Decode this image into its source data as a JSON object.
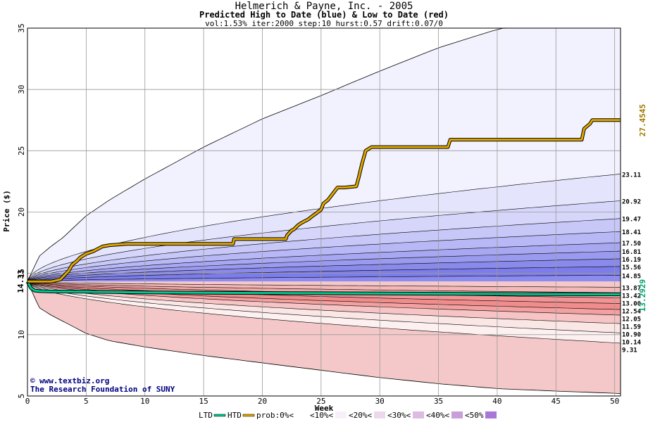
{
  "header": {
    "title": "Helmerich & Payne, Inc. - 2005",
    "subtitle": "Predicted High to Date (blue) &  Low to Date (red)",
    "params": "vol:1.53% iter:2000 step:10 hurst:0.57 drift:0.07/0"
  },
  "watermark": {
    "line1": "www.textbiz.org",
    "line2": "The Research Foundation of SUNY"
  },
  "colors": {
    "htd_line": "#e0a800",
    "ltd_line": "#00c890",
    "grid": "#999999",
    "label_htd": "#a07800",
    "label_ltd": "#00a070"
  },
  "chart_data": {
    "type": "area",
    "xlabel": "Week",
    "ylabel": "Price ($)",
    "xlim": [
      0,
      50.5
    ],
    "ylim": [
      5,
      35
    ],
    "xticks": [
      0,
      5,
      10,
      15,
      20,
      25,
      30,
      35,
      40,
      45,
      50
    ],
    "yticks": [
      5,
      10,
      15,
      20,
      25,
      30,
      35
    ],
    "start_price": 14.33,
    "start_label": "14.33",
    "grid": true,
    "legend": {
      "placement": "bottom",
      "items": [
        {
          "label": "LTD",
          "color": "#00c890",
          "kind": "line"
        },
        {
          "label": "HTD",
          "color": "#e0a800",
          "kind": "line"
        },
        {
          "label": "prob:0%<",
          "color": "#ffffff",
          "kind": "swatch"
        },
        {
          "label": "<10%<",
          "color": "#f8f0f8",
          "kind": "swatch"
        },
        {
          "label": "<20%<",
          "color": "#ecd8ec",
          "kind": "swatch"
        },
        {
          "label": "<30%<",
          "color": "#dcbce0",
          "kind": "swatch"
        },
        {
          "label": "<40%<",
          "color": "#c8a0d8",
          "kind": "swatch"
        },
        {
          "label": "<50%",
          "color": "#a878d8",
          "kind": "swatch"
        }
      ]
    },
    "band_fills_high": [
      "#f2f2ff",
      "#e4e4fc",
      "#d6d6fa",
      "#c8c8f8",
      "#b8b8f6",
      "#a8a8f2",
      "#9a9aee",
      "#8a8aea",
      "#7c7cea",
      "#8c8cf0",
      "#a0a0f4",
      "#b8b8f8",
      "#d0d0fa"
    ],
    "band_fills_low": [
      "#f4c8c8",
      "#f3b8b8",
      "#f2a8a8",
      "#f09494",
      "#f08c8c",
      "#f2a0a0",
      "#f6c4c4",
      "#fbe6e6",
      "#fdf0f0"
    ],
    "envelope_high": {
      "x": [
        0,
        1,
        2,
        3,
        5,
        7,
        10,
        15,
        20,
        25,
        30,
        35,
        40,
        40.5
      ],
      "y": [
        14.33,
        16.4,
        17.2,
        17.9,
        19.7,
        21.0,
        22.7,
        25.3,
        27.6,
        29.5,
        31.5,
        33.4,
        34.9,
        35
      ]
    },
    "envelope_low": {
      "x": [
        0,
        1,
        2,
        3,
        5,
        7,
        10,
        15,
        20,
        25,
        30,
        35,
        40,
        45,
        50.5
      ],
      "y": [
        14.33,
        12.2,
        11.6,
        11.1,
        10.1,
        9.5,
        9.0,
        8.3,
        7.7,
        7.1,
        6.5,
        6.0,
        5.6,
        5.4,
        5.2
      ]
    },
    "levels_high": [
      23.11,
      20.92,
      19.47,
      18.41,
      17.5,
      16.81,
      16.19,
      15.56,
      14.85
    ],
    "levels_high_labels": [
      "23.11",
      "20.92",
      "19.47",
      "18.41",
      "17.50",
      "16.81",
      "16.19",
      "15.56",
      "14.85"
    ],
    "levels_low": [
      13.87,
      13.42,
      13.0,
      12.54,
      12.05,
      11.59,
      10.9,
      10.14,
      9.31
    ],
    "levels_low_labels": [
      "13.87",
      "13.42",
      "13.00",
      "12.54",
      "12.05",
      "11.59",
      "10.90",
      "10.14",
      "9.31"
    ],
    "htd": {
      "x": [
        0,
        2,
        2.8,
        3.2,
        3.5,
        3.8,
        4.2,
        4.5,
        5.0,
        5.6,
        6.0,
        6.4,
        7.0,
        8.5,
        10,
        12,
        14,
        16,
        17.5,
        17.6,
        22,
        22.1,
        22.3,
        22.5,
        22.7,
        23.0,
        23.3,
        23.5,
        23.9,
        24.3,
        24.6,
        25.0,
        25.2,
        25.6,
        26.0,
        26.4,
        27.0,
        28.0,
        28.2,
        28.5,
        28.8,
        29.3,
        35.8,
        36.0,
        47.2,
        47.4,
        47.9,
        48.1,
        50.5
      ],
      "y": [
        14.33,
        14.33,
        14.5,
        14.9,
        15.2,
        15.7,
        16.0,
        16.3,
        16.6,
        16.8,
        17.0,
        17.2,
        17.3,
        17.4,
        17.4,
        17.4,
        17.4,
        17.4,
        17.4,
        17.8,
        17.8,
        18.1,
        18.3,
        18.5,
        18.6,
        18.9,
        19.1,
        19.2,
        19.4,
        19.7,
        19.9,
        20.2,
        20.7,
        21.0,
        21.5,
        22.0,
        22.0,
        22.1,
        22.8,
        24.0,
        25.0,
        25.3,
        25.3,
        25.9,
        25.9,
        26.8,
        27.2,
        27.5,
        27.5
      ]
    },
    "ltd": {
      "x": [
        0,
        0.3,
        0.6,
        1.0,
        2.0,
        5,
        10,
        15,
        20,
        25,
        30,
        35,
        40,
        45,
        50.5
      ],
      "y": [
        14.33,
        13.8,
        13.6,
        13.55,
        13.52,
        13.5,
        13.45,
        13.42,
        13.4,
        13.38,
        13.36,
        13.34,
        13.32,
        13.3,
        13.29
      ]
    },
    "htd_final_label": "27.4545",
    "ltd_final_label": "13.2929"
  }
}
